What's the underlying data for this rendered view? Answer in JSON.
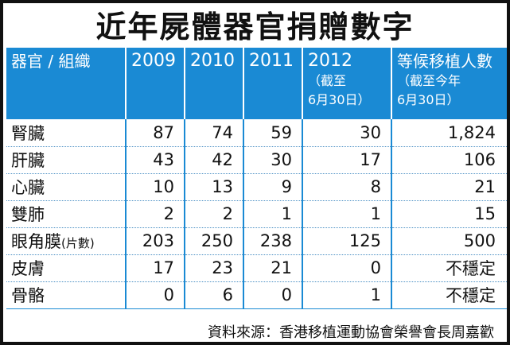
{
  "title": "近年屍體器官捐贈數字",
  "header": {
    "organ": "器官 / 組織",
    "y2009": "2009",
    "y2010": "2010",
    "y2011": "2011",
    "y2012": "2012",
    "y2012_note": "（截至\n6月30日）",
    "waiting": "等候移植人數",
    "waiting_note": "（截至今年\n6月30日）"
  },
  "rows": [
    {
      "organ": "腎臟",
      "unit": "",
      "y2009": "87",
      "y2010": "74",
      "y2011": "59",
      "y2012": "30",
      "waiting": "1,824"
    },
    {
      "organ": "肝臟",
      "unit": "",
      "y2009": "43",
      "y2010": "42",
      "y2011": "30",
      "y2012": "17",
      "waiting": "106"
    },
    {
      "organ": "心臟",
      "unit": "",
      "y2009": "10",
      "y2010": "13",
      "y2011": "9",
      "y2012": "8",
      "waiting": "21"
    },
    {
      "organ": "雙肺",
      "unit": "",
      "y2009": "2",
      "y2010": "2",
      "y2011": "1",
      "y2012": "1",
      "waiting": "15"
    },
    {
      "organ": "眼角膜",
      "unit": "(片數)",
      "y2009": "203",
      "y2010": "250",
      "y2011": "238",
      "y2012": "125",
      "waiting": "500"
    },
    {
      "organ": "皮膚",
      "unit": "",
      "y2009": "17",
      "y2010": "23",
      "y2011": "21",
      "y2012": "0",
      "waiting": "不穩定"
    },
    {
      "organ": "骨骼",
      "unit": "",
      "y2009": "0",
      "y2010": "6",
      "y2011": "0",
      "y2012": "1",
      "waiting": "不穩定"
    }
  ],
  "footer": "資料來源：香港移植運動協會榮譽會長周嘉歡",
  "colors": {
    "header_bg": "#1a8ad4",
    "header_text": "#ffffff",
    "border": "#111111"
  },
  "chart_data": {
    "type": "table",
    "title": "近年屍體器官捐贈數字",
    "columns": [
      "器官 / 組織",
      "2009",
      "2010",
      "2011",
      "2012（截至6月30日）",
      "等候移植人數（截至今年6月30日）"
    ],
    "rows": [
      [
        "腎臟",
        87,
        74,
        59,
        30,
        1824
      ],
      [
        "肝臟",
        43,
        42,
        30,
        17,
        106
      ],
      [
        "心臟",
        10,
        13,
        9,
        8,
        21
      ],
      [
        "雙肺",
        2,
        2,
        1,
        1,
        15
      ],
      [
        "眼角膜(片數)",
        203,
        250,
        238,
        125,
        500
      ],
      [
        "皮膚",
        17,
        23,
        21,
        0,
        "不穩定"
      ],
      [
        "骨骼",
        0,
        6,
        0,
        1,
        "不穩定"
      ]
    ]
  }
}
